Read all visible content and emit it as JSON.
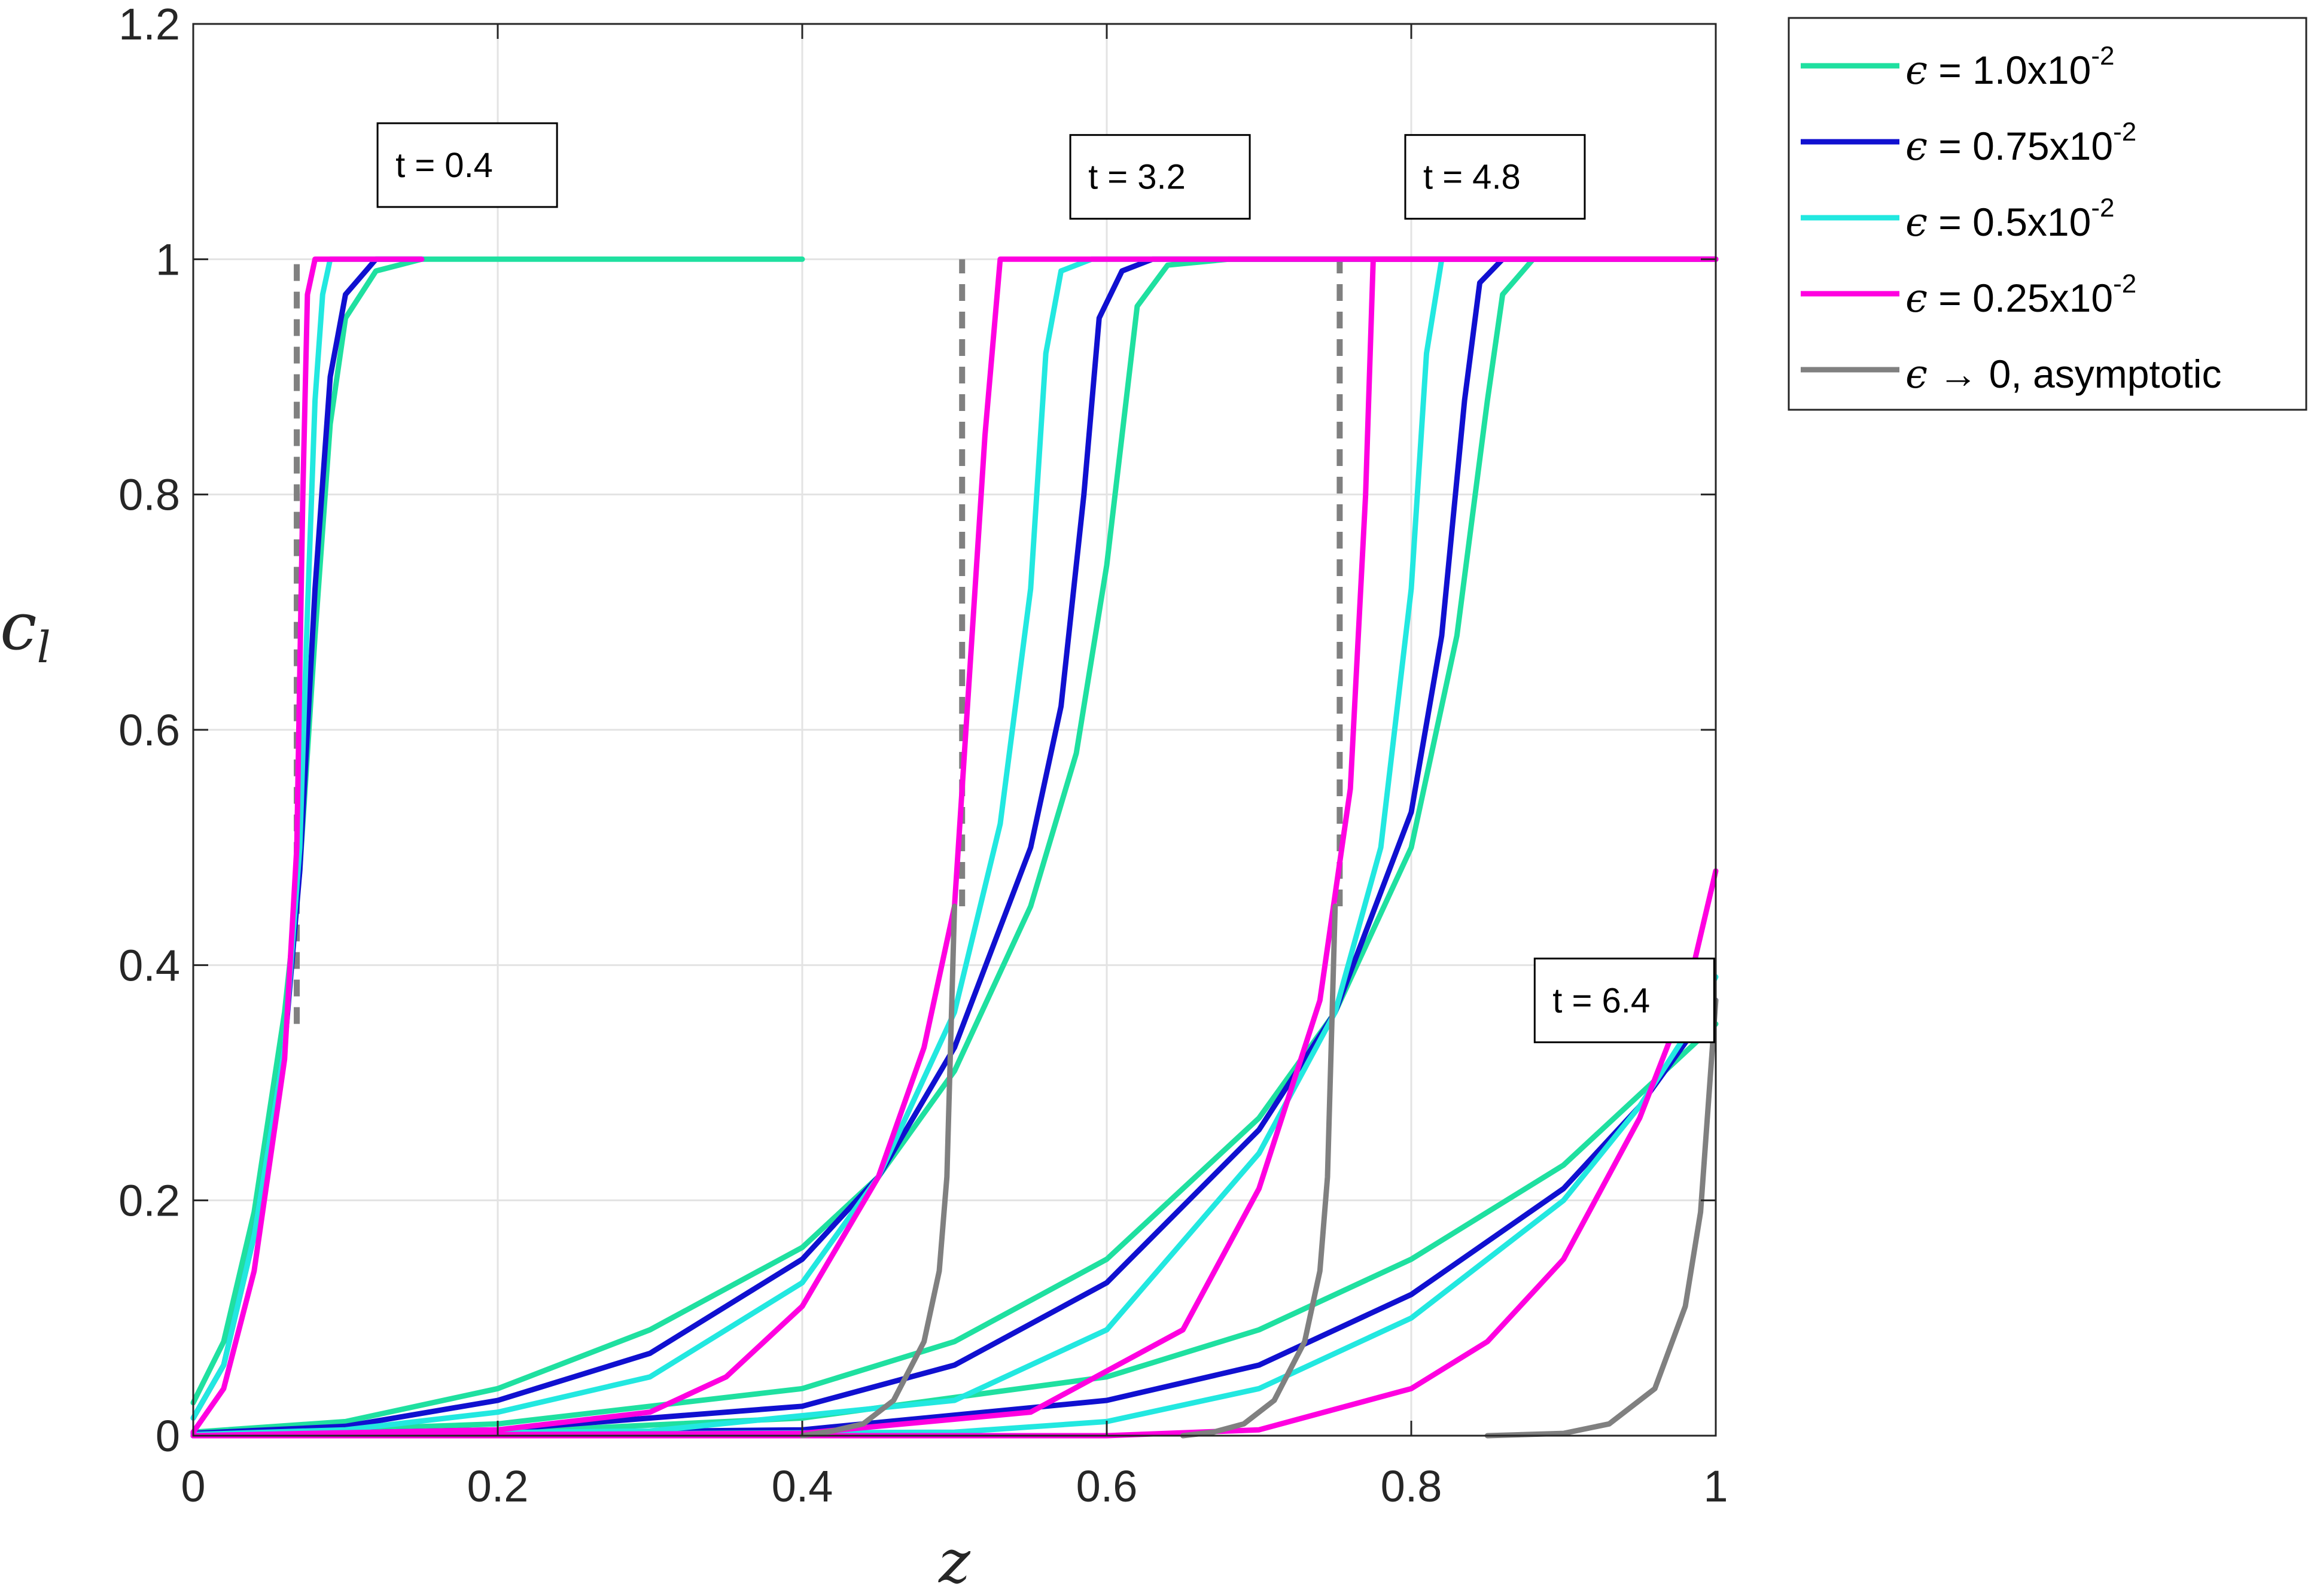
{
  "chart_data": {
    "type": "line",
    "xlabel": "z",
    "ylabel": "c",
    "ylabel_sub": "l",
    "xlim": [
      0,
      1
    ],
    "ylim": [
      0,
      1.2
    ],
    "xticks": [
      "0",
      "0.2",
      "0.4",
      "0.6",
      "0.8",
      "1"
    ],
    "yticks": [
      "0",
      "0.2",
      "0.4",
      "0.6",
      "0.8",
      "1",
      "1.2"
    ],
    "grid": true,
    "legend_position": "outside-top-right",
    "legend": [
      {
        "symbol": "ϵ",
        "text": " = 1.0x10",
        "sup": "-2",
        "color": "#1fe0a0",
        "dashed": false
      },
      {
        "symbol": "ϵ",
        "text": " = 0.75x10",
        "sup": "-2",
        "color": "#1010d0",
        "dashed": false
      },
      {
        "symbol": "ϵ",
        "text": " = 0.5x10",
        "sup": "-2",
        "color": "#22e8e0",
        "dashed": false
      },
      {
        "symbol": "ϵ",
        "text": " = 0.25x10",
        "sup": "-2",
        "color": "#ff00e0",
        "dashed": false
      },
      {
        "symbol": "ϵ",
        "text": " → 0, asymptotic",
        "sup": "",
        "color": "#808080",
        "dashed": false
      }
    ],
    "annotations": [
      "t = 0.4",
      "t = 3.2",
      "t = 4.8",
      "t = 6.4"
    ],
    "series": [
      {
        "time": "0.4",
        "legend_index": 0,
        "points": [
          [
            0,
            0.028
          ],
          [
            0.02,
            0.08
          ],
          [
            0.04,
            0.19
          ],
          [
            0.06,
            0.36
          ],
          [
            0.07,
            0.48
          ],
          [
            0.08,
            0.68
          ],
          [
            0.09,
            0.86
          ],
          [
            0.1,
            0.95
          ],
          [
            0.12,
            0.99
          ],
          [
            0.15,
            1.0
          ],
          [
            0.4,
            1.0
          ]
        ]
      },
      {
        "time": "0.4",
        "legend_index": 1,
        "points": [
          [
            0,
            0.015
          ],
          [
            0.02,
            0.06
          ],
          [
            0.04,
            0.17
          ],
          [
            0.06,
            0.33
          ],
          [
            0.07,
            0.48
          ],
          [
            0.08,
            0.72
          ],
          [
            0.09,
            0.9
          ],
          [
            0.1,
            0.97
          ],
          [
            0.12,
            1.0
          ],
          [
            0.15,
            1.0
          ]
        ]
      },
      {
        "time": "0.4",
        "legend_index": 2,
        "points": [
          [
            0,
            0.015
          ],
          [
            0.02,
            0.06
          ],
          [
            0.04,
            0.17
          ],
          [
            0.06,
            0.33
          ],
          [
            0.07,
            0.5
          ],
          [
            0.075,
            0.7
          ],
          [
            0.08,
            0.88
          ],
          [
            0.085,
            0.97
          ],
          [
            0.09,
            1.0
          ],
          [
            0.15,
            1.0
          ]
        ]
      },
      {
        "time": "0.4",
        "legend_index": 3,
        "points": [
          [
            0,
            0.003
          ],
          [
            0.02,
            0.04
          ],
          [
            0.04,
            0.14
          ],
          [
            0.06,
            0.32
          ],
          [
            0.068,
            0.5
          ],
          [
            0.072,
            0.8
          ],
          [
            0.075,
            0.97
          ],
          [
            0.08,
            1.0
          ],
          [
            0.15,
            1.0
          ]
        ]
      },
      {
        "time": "3.2",
        "legend_index": 0,
        "points": [
          [
            0,
            0.003
          ],
          [
            0.1,
            0.012
          ],
          [
            0.2,
            0.04
          ],
          [
            0.3,
            0.09
          ],
          [
            0.4,
            0.16
          ],
          [
            0.45,
            0.22
          ],
          [
            0.5,
            0.31
          ],
          [
            0.55,
            0.45
          ],
          [
            0.58,
            0.58
          ],
          [
            0.6,
            0.74
          ],
          [
            0.61,
            0.85
          ],
          [
            0.62,
            0.96
          ],
          [
            0.64,
            0.995
          ],
          [
            0.68,
            1.0
          ],
          [
            1,
            1.0
          ]
        ]
      },
      {
        "time": "3.2",
        "legend_index": 1,
        "points": [
          [
            0,
            0.002
          ],
          [
            0.1,
            0.008
          ],
          [
            0.2,
            0.03
          ],
          [
            0.3,
            0.07
          ],
          [
            0.4,
            0.15
          ],
          [
            0.45,
            0.22
          ],
          [
            0.5,
            0.33
          ],
          [
            0.55,
            0.5
          ],
          [
            0.57,
            0.62
          ],
          [
            0.585,
            0.8
          ],
          [
            0.595,
            0.95
          ],
          [
            0.61,
            0.99
          ],
          [
            0.63,
            1.0
          ],
          [
            1,
            1.0
          ]
        ]
      },
      {
        "time": "3.2",
        "legend_index": 2,
        "points": [
          [
            0,
            0.001
          ],
          [
            0.1,
            0.005
          ],
          [
            0.2,
            0.02
          ],
          [
            0.3,
            0.05
          ],
          [
            0.4,
            0.13
          ],
          [
            0.45,
            0.22
          ],
          [
            0.5,
            0.36
          ],
          [
            0.53,
            0.52
          ],
          [
            0.55,
            0.72
          ],
          [
            0.56,
            0.92
          ],
          [
            0.57,
            0.99
          ],
          [
            0.59,
            1.0
          ],
          [
            1,
            1.0
          ]
        ]
      },
      {
        "time": "3.2",
        "legend_index": 3,
        "points": [
          [
            0,
            0.0
          ],
          [
            0.2,
            0.005
          ],
          [
            0.3,
            0.02
          ],
          [
            0.35,
            0.05
          ],
          [
            0.4,
            0.11
          ],
          [
            0.45,
            0.22
          ],
          [
            0.48,
            0.33
          ],
          [
            0.5,
            0.45
          ],
          [
            0.51,
            0.65
          ],
          [
            0.52,
            0.85
          ],
          [
            0.53,
            1.0
          ],
          [
            1,
            1.0
          ]
        ]
      },
      {
        "time": "4.8",
        "legend_index": 0,
        "points": [
          [
            0,
            0.001
          ],
          [
            0.2,
            0.01
          ],
          [
            0.4,
            0.04
          ],
          [
            0.5,
            0.08
          ],
          [
            0.6,
            0.15
          ],
          [
            0.7,
            0.27
          ],
          [
            0.75,
            0.36
          ],
          [
            0.8,
            0.5
          ],
          [
            0.83,
            0.68
          ],
          [
            0.85,
            0.88
          ],
          [
            0.86,
            0.97
          ],
          [
            0.88,
            1.0
          ],
          [
            1,
            1.0
          ]
        ]
      },
      {
        "time": "4.8",
        "legend_index": 1,
        "points": [
          [
            0,
            0.0
          ],
          [
            0.2,
            0.005
          ],
          [
            0.4,
            0.025
          ],
          [
            0.5,
            0.06
          ],
          [
            0.6,
            0.13
          ],
          [
            0.7,
            0.26
          ],
          [
            0.75,
            0.36
          ],
          [
            0.8,
            0.53
          ],
          [
            0.82,
            0.68
          ],
          [
            0.835,
            0.88
          ],
          [
            0.845,
            0.98
          ],
          [
            0.86,
            1.0
          ],
          [
            1,
            1.0
          ]
        ]
      },
      {
        "time": "4.8",
        "legend_index": 2,
        "points": [
          [
            0,
            0.0
          ],
          [
            0.3,
            0.004
          ],
          [
            0.5,
            0.03
          ],
          [
            0.6,
            0.09
          ],
          [
            0.7,
            0.24
          ],
          [
            0.75,
            0.36
          ],
          [
            0.78,
            0.5
          ],
          [
            0.8,
            0.72
          ],
          [
            0.81,
            0.92
          ],
          [
            0.82,
            1.0
          ],
          [
            1,
            1.0
          ]
        ]
      },
      {
        "time": "4.8",
        "legend_index": 3,
        "points": [
          [
            0,
            0.0
          ],
          [
            0.4,
            0.002
          ],
          [
            0.55,
            0.02
          ],
          [
            0.65,
            0.09
          ],
          [
            0.7,
            0.21
          ],
          [
            0.74,
            0.37
          ],
          [
            0.76,
            0.55
          ],
          [
            0.77,
            0.8
          ],
          [
            0.775,
            1.0
          ],
          [
            1,
            1.0
          ]
        ]
      },
      {
        "time": "6.4",
        "legend_index": 0,
        "points": [
          [
            0,
            0.0
          ],
          [
            0.2,
            0.003
          ],
          [
            0.4,
            0.015
          ],
          [
            0.6,
            0.05
          ],
          [
            0.7,
            0.09
          ],
          [
            0.8,
            0.15
          ],
          [
            0.9,
            0.23
          ],
          [
            0.95,
            0.29
          ],
          [
            1.0,
            0.35
          ]
        ]
      },
      {
        "time": "6.4",
        "legend_index": 1,
        "points": [
          [
            0,
            0.0
          ],
          [
            0.4,
            0.005
          ],
          [
            0.6,
            0.03
          ],
          [
            0.7,
            0.06
          ],
          [
            0.8,
            0.12
          ],
          [
            0.9,
            0.21
          ],
          [
            0.95,
            0.28
          ],
          [
            1.0,
            0.37
          ]
        ]
      },
      {
        "time": "6.4",
        "legend_index": 2,
        "points": [
          [
            0,
            0.0
          ],
          [
            0.5,
            0.003
          ],
          [
            0.6,
            0.012
          ],
          [
            0.7,
            0.04
          ],
          [
            0.8,
            0.1
          ],
          [
            0.9,
            0.2
          ],
          [
            0.95,
            0.28
          ],
          [
            0.98,
            0.34
          ],
          [
            1.0,
            0.39
          ]
        ]
      },
      {
        "time": "6.4",
        "legend_index": 3,
        "points": [
          [
            0,
            0.0
          ],
          [
            0.6,
            0.0
          ],
          [
            0.7,
            0.005
          ],
          [
            0.8,
            0.04
          ],
          [
            0.85,
            0.08
          ],
          [
            0.9,
            0.15
          ],
          [
            0.95,
            0.27
          ],
          [
            0.98,
            0.37
          ],
          [
            1.0,
            0.48
          ]
        ]
      },
      {
        "time": "3.2",
        "legend_index": 4,
        "points": [
          [
            0.4,
            0.0
          ],
          [
            0.42,
            0.004
          ],
          [
            0.44,
            0.01
          ],
          [
            0.46,
            0.03
          ],
          [
            0.48,
            0.08
          ],
          [
            0.49,
            0.14
          ],
          [
            0.495,
            0.22
          ],
          [
            0.5,
            0.45
          ]
        ]
      },
      {
        "time": "4.8",
        "legend_index": 4,
        "points": [
          [
            0.65,
            0.0
          ],
          [
            0.67,
            0.003
          ],
          [
            0.69,
            0.01
          ],
          [
            0.71,
            0.03
          ],
          [
            0.73,
            0.08
          ],
          [
            0.74,
            0.14
          ],
          [
            0.745,
            0.22
          ],
          [
            0.75,
            0.45
          ]
        ]
      },
      {
        "time": "6.4",
        "legend_index": 4,
        "points": [
          [
            0.85,
            0.0
          ],
          [
            0.9,
            0.002
          ],
          [
            0.93,
            0.01
          ],
          [
            0.96,
            0.04
          ],
          [
            0.98,
            0.11
          ],
          [
            0.99,
            0.19
          ],
          [
            1.0,
            0.37
          ]
        ]
      }
    ],
    "asymptotic_fronts": [
      {
        "time": "0.4",
        "z": 0.068,
        "from": 0.35,
        "to": 1.0
      },
      {
        "time": "3.2",
        "z": 0.505,
        "from": 0.45,
        "to": 1.0
      },
      {
        "time": "4.8",
        "z": 0.753,
        "from": 0.45,
        "to": 1.0
      }
    ]
  }
}
